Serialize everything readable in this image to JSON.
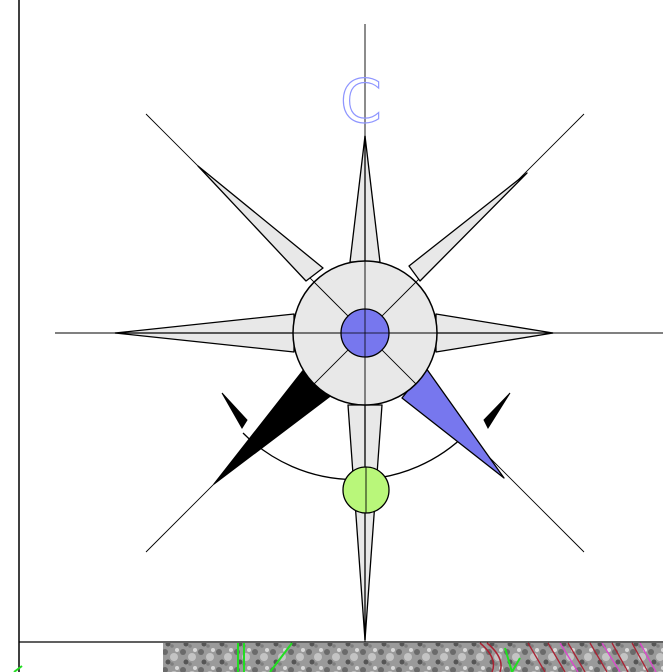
{
  "sheet": {
    "compass_letter": "C",
    "colors": {
      "background": "#ffffff",
      "frame_line": "#000000",
      "star_fill": "#e8e8e8",
      "accent_blue": "#7777ee",
      "accent_green": "#b9f77a",
      "black_arm": "#000000",
      "letter_stroke": "#8f96ff",
      "map_green": "#22dd22",
      "map_red": "#aa2233",
      "map_magenta": "#dd44cc"
    },
    "icons": {
      "compass": "compass-rose-icon",
      "north_marker": "north-letter-icon",
      "center_dot": "center-dot-icon",
      "green_marker": "green-dot-icon",
      "left_arrow": "curved-arrow-left-icon",
      "right_arrow": "curved-arrow-right-icon"
    }
  }
}
